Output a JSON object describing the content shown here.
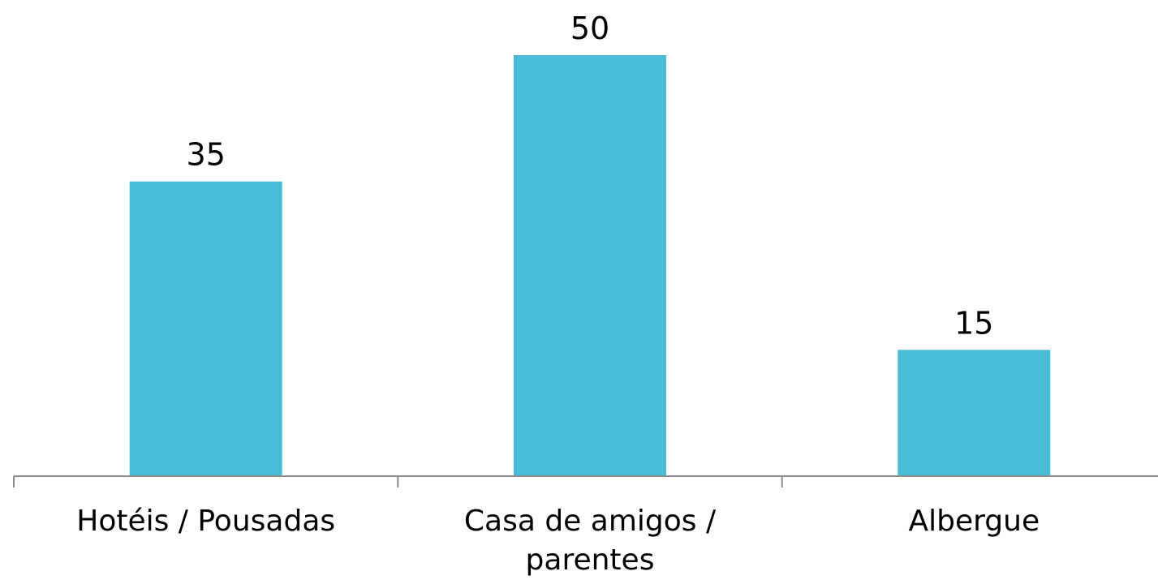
{
  "chart_data": {
    "type": "bar",
    "categories": [
      "Hotéis / Pousadas",
      "Casa de amigos / parentes",
      "Albergue"
    ],
    "category_lines": [
      [
        "Hotéis / Pousadas"
      ],
      [
        "Casa de amigos /",
        "parentes"
      ],
      [
        "Albergue"
      ]
    ],
    "values": [
      35,
      50,
      15
    ],
    "data_labels": [
      "35",
      "50",
      "15"
    ],
    "title": "",
    "xlabel": "",
    "ylabel": "",
    "ylim": [
      0,
      50
    ],
    "grid": false,
    "legend": "none",
    "bar_color": "#4BBCD7"
  }
}
